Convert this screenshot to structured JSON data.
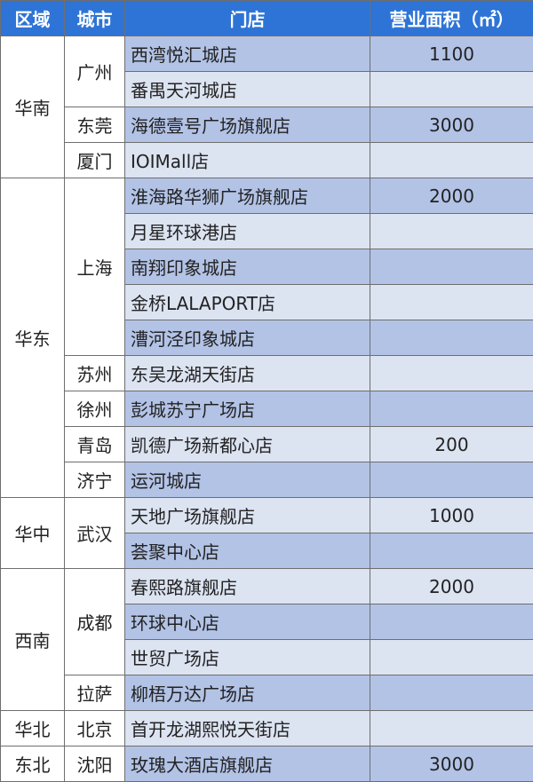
{
  "headers": {
    "region": "区域",
    "city": "城市",
    "store": "门店",
    "area": "营业面积（㎡）"
  },
  "regions": [
    {
      "name": "华南",
      "cities": [
        {
          "name": "广州",
          "stores": [
            {
              "store": "西湾悦汇城店",
              "area": "1100"
            },
            {
              "store": "番禺天河城店",
              "area": ""
            }
          ]
        },
        {
          "name": "东莞",
          "stores": [
            {
              "store": "海德壹号广场旗舰店",
              "area": "3000"
            }
          ]
        },
        {
          "name": "厦门",
          "stores": [
            {
              "store": "IOIMall店",
              "area": ""
            }
          ]
        }
      ]
    },
    {
      "name": "华东",
      "cities": [
        {
          "name": "上海",
          "stores": [
            {
              "store": "淮海路华狮广场旗舰店",
              "area": "2000"
            },
            {
              "store": "月星环球港店",
              "area": ""
            },
            {
              "store": "南翔印象城店",
              "area": ""
            },
            {
              "store": "金桥LALAPORT店",
              "area": ""
            },
            {
              "store": "漕河泾印象城店",
              "area": ""
            }
          ]
        },
        {
          "name": "苏州",
          "stores": [
            {
              "store": "东吴龙湖天街店",
              "area": ""
            }
          ]
        },
        {
          "name": "徐州",
          "stores": [
            {
              "store": "彭城苏宁广场店",
              "area": ""
            }
          ]
        },
        {
          "name": "青岛",
          "stores": [
            {
              "store": "凯德广场新都心店",
              "area": "200"
            }
          ]
        },
        {
          "name": "济宁",
          "stores": [
            {
              "store": "运河城店",
              "area": ""
            }
          ]
        }
      ]
    },
    {
      "name": "华中",
      "cities": [
        {
          "name": "武汉",
          "stores": [
            {
              "store": "天地广场旗舰店",
              "area": "1000"
            },
            {
              "store": "荟聚中心店",
              "area": ""
            }
          ]
        }
      ]
    },
    {
      "name": "西南",
      "cities": [
        {
          "name": "成都",
          "stores": [
            {
              "store": "春熙路旗舰店",
              "area": "2000"
            },
            {
              "store": "环球中心店",
              "area": ""
            },
            {
              "store": "世贸广场店",
              "area": ""
            }
          ]
        },
        {
          "name": "拉萨",
          "stores": [
            {
              "store": "柳梧万达广场店",
              "area": ""
            }
          ]
        }
      ]
    },
    {
      "name": "华北",
      "cities": [
        {
          "name": "北京",
          "stores": [
            {
              "store": "首开龙湖熙悦天街店",
              "area": ""
            }
          ]
        }
      ]
    },
    {
      "name": "东北",
      "cities": [
        {
          "name": "沈阳",
          "stores": [
            {
              "store": "玫瑰大酒店旗舰店",
              "area": "3000"
            }
          ]
        }
      ]
    }
  ]
}
